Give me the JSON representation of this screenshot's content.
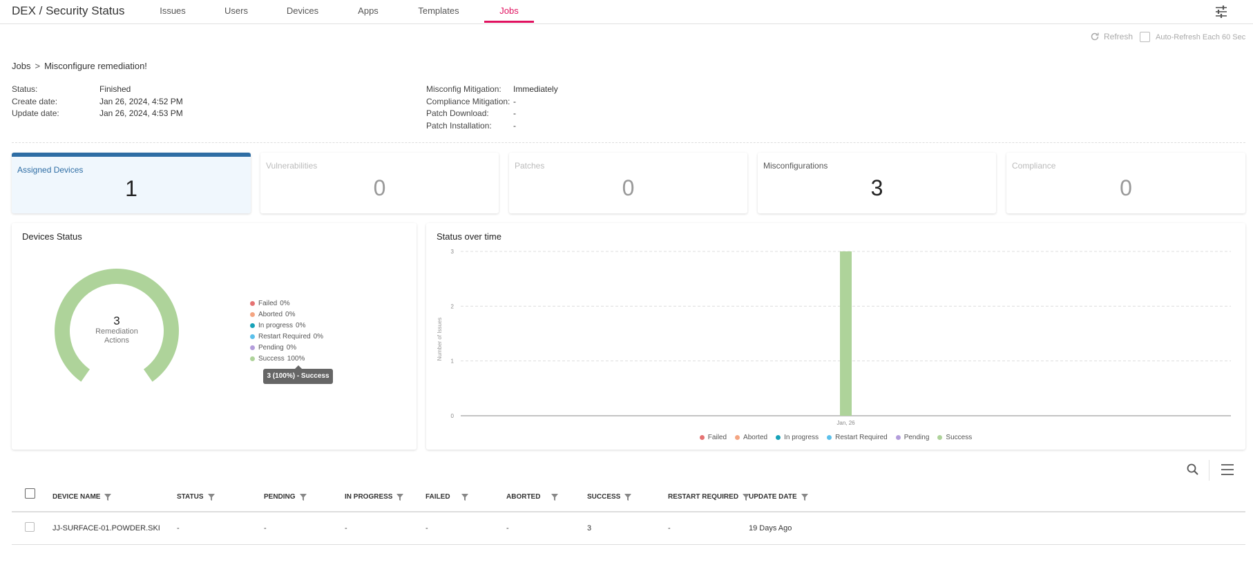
{
  "header": {
    "title": "DEX / Security Status",
    "tabs": [
      {
        "label": "Issues"
      },
      {
        "label": "Users"
      },
      {
        "label": "Devices"
      },
      {
        "label": "Apps"
      },
      {
        "label": "Templates"
      },
      {
        "label": "Jobs",
        "active": true
      }
    ]
  },
  "toolbar": {
    "refresh_label": "Refresh",
    "auto_refresh_label": "Auto-Refresh Each 60 Sec"
  },
  "breadcrumb": {
    "parent": "Jobs",
    "separator": ">",
    "current": "Misconfigure remediation!"
  },
  "info_left": [
    {
      "label": "Status:",
      "value": "Finished"
    },
    {
      "label": "Create date:",
      "value": "Jan 26, 2024, 4:52 PM"
    },
    {
      "label": "Update date:",
      "value": "Jan 26, 2024, 4:53 PM"
    }
  ],
  "info_right": [
    {
      "label": "Misconfig Mitigation:",
      "value": "Immediately"
    },
    {
      "label": "Compliance Mitigation:",
      "value": "-"
    },
    {
      "label": "Patch Download:",
      "value": "-"
    },
    {
      "label": "Patch Installation:",
      "value": "-"
    }
  ],
  "cards": [
    {
      "title": "Assigned Devices",
      "value": "1"
    },
    {
      "title": "Vulnerabilities",
      "value": "0"
    },
    {
      "title": "Patches",
      "value": "0"
    },
    {
      "title": "Misconfigurations",
      "value": "3"
    },
    {
      "title": "Compliance",
      "value": "0"
    }
  ],
  "devices_status": {
    "title": "Devices Status",
    "total": "3",
    "center_label_1": "Remediation",
    "center_label_2": "Actions",
    "legend": [
      {
        "name": "Failed",
        "pct": "0%",
        "color": "#e57373"
      },
      {
        "name": "Aborted",
        "pct": "0%",
        "color": "#f4a582"
      },
      {
        "name": "In progress",
        "pct": "0%",
        "color": "#17a2b8"
      },
      {
        "name": "Restart Required",
        "pct": "0%",
        "color": "#5bc0eb"
      },
      {
        "name": "Pending",
        "pct": "0%",
        "color": "#b39ddb"
      },
      {
        "name": "Success",
        "pct": "100%",
        "color": "#aed39a"
      }
    ],
    "tooltip": "3 (100%) - Success"
  },
  "status_over_time": {
    "title": "Status over time"
  },
  "chart_data": {
    "type": "bar",
    "categories": [
      "Jan, 26"
    ],
    "series": [
      {
        "name": "Failed",
        "values": [
          0
        ]
      },
      {
        "name": "Aborted",
        "values": [
          0
        ]
      },
      {
        "name": "In progress",
        "values": [
          0
        ]
      },
      {
        "name": "Restart Required",
        "values": [
          0
        ]
      },
      {
        "name": "Pending",
        "values": [
          0
        ]
      },
      {
        "name": "Success",
        "values": [
          3
        ]
      }
    ],
    "ylabel": "Number of Issues",
    "ylim": [
      0,
      3
    ],
    "yticks": [
      "0",
      "1",
      "2",
      "3"
    ],
    "legend_position": "bottom",
    "grid": true
  },
  "table": {
    "columns": [
      "DEVICE NAME",
      "STATUS",
      "PENDING",
      "IN PROGRESS",
      "FAILED",
      "ABORTED",
      "SUCCESS",
      "RESTART REQUIRED",
      "UPDATE DATE"
    ],
    "rows": [
      [
        "JJ-SURFACE-01.POWDER.SKI",
        "-",
        "-",
        "-",
        "-",
        "-",
        "3",
        "-",
        "19 Days Ago"
      ]
    ]
  }
}
